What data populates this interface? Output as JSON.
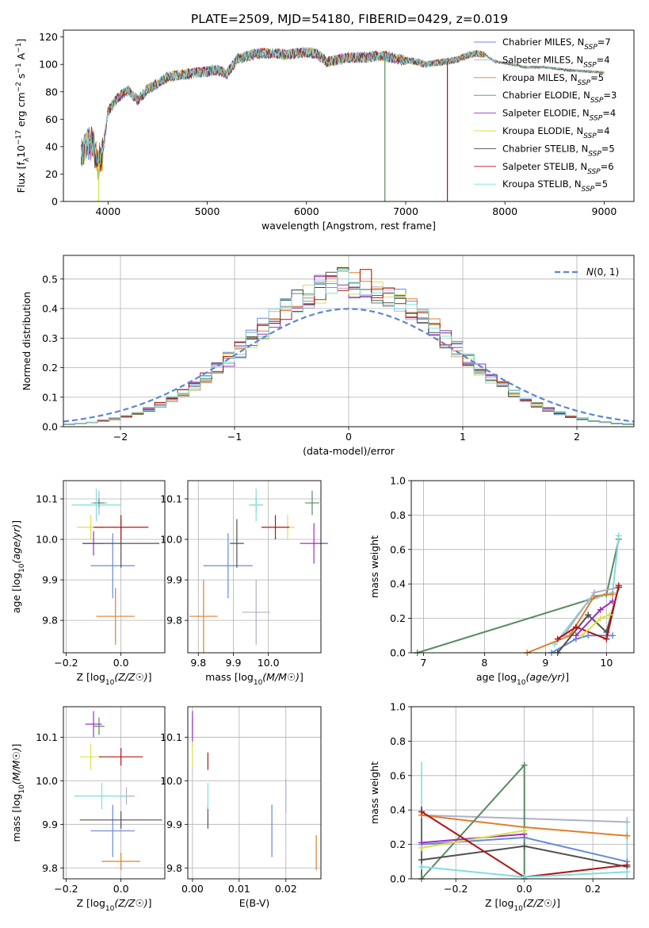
{
  "figure": {
    "title": "PLATE=2509, MJD=54180, FIBERID=0429, z=0.019"
  },
  "model_colors": [
    "#6688dd",
    "#b0b0c8",
    "#e07f2a",
    "#5a8a60",
    "#9b30c0",
    "#d9e048",
    "#505050",
    "#b01515",
    "#80dddd"
  ],
  "chart_data": [
    {
      "id": "spectrum",
      "type": "line",
      "xlabel": "wavelength [Angstrom, rest frame]",
      "ylabel": "Flux [f_λ 10^-17 erg cm^-2 s^-1 A^-1]",
      "xlim": [
        3550,
        9300
      ],
      "ylim": [
        0,
        125
      ],
      "xticks": [
        4000,
        5000,
        6000,
        7000,
        8000,
        9000
      ],
      "yticks": [
        0,
        20,
        40,
        60,
        80,
        100,
        120
      ],
      "grid": false,
      "legend_position": "top-right",
      "legend": [
        {
          "label": "Chabrier MILES, N",
          "sub": "SSP",
          "suffix": "=7"
        },
        {
          "label": "Salpeter MILES, N",
          "sub": "SSP",
          "suffix": "=4"
        },
        {
          "label": "Kroupa MILES, N",
          "sub": "SSP",
          "suffix": "=5"
        },
        {
          "label": "Chabrier ELODIE, N",
          "sub": "SSP",
          "suffix": "=3"
        },
        {
          "label": "Salpeter ELODIE, N",
          "sub": "SSP",
          "suffix": "=4"
        },
        {
          "label": "Kroupa ELODIE, N",
          "sub": "SSP",
          "suffix": "=4"
        },
        {
          "label": "Chabrier STELIB, N",
          "sub": "SSP",
          "suffix": "=5"
        },
        {
          "label": "Salpeter STELIB, N",
          "sub": "SSP",
          "suffix": "=6"
        },
        {
          "label": "Kroupa STELIB, N",
          "sub": "SSP",
          "suffix": "=5"
        }
      ],
      "envelope": {
        "x": [
          3730,
          3800,
          3850,
          3900,
          3950,
          4000,
          4100,
          4200,
          4300,
          4400,
          4500,
          4600,
          4700,
          4800,
          4900,
          5000,
          5100,
          5200,
          5300,
          5400,
          5500,
          5600,
          5700,
          5800,
          5900,
          6000,
          6100,
          6200,
          6300,
          6400,
          6500,
          6600,
          6700,
          6800,
          6900,
          7000,
          7100,
          7200,
          7300,
          7400,
          7500,
          7600,
          7700,
          7800,
          7900,
          8000,
          8200,
          8400,
          8600,
          8800,
          9000
        ],
        "y": [
          33,
          43,
          42,
          27,
          38,
          66,
          76,
          81,
          74,
          82,
          86,
          91,
          92,
          93,
          94,
          95,
          96,
          93,
          104,
          106,
          108,
          108,
          108,
          107,
          108,
          109,
          108,
          102,
          103,
          105,
          105,
          105,
          106,
          106,
          104,
          103,
          102,
          100,
          101,
          102,
          103,
          106,
          108,
          107,
          102,
          101,
          98,
          98,
          96,
          95,
          94
        ]
      },
      "drops": [
        {
          "x": 3905,
          "y": 0,
          "series": 5
        },
        {
          "x": 6790,
          "y": 0,
          "series": 3
        },
        {
          "x": 7420,
          "y": 0,
          "series": 7
        }
      ]
    },
    {
      "id": "residual_histogram",
      "type": "histogram",
      "xlabel": "(data-model)/error",
      "ylabel": "Normed distribution",
      "xlim": [
        -2.5,
        2.5
      ],
      "ylim": [
        0,
        0.58
      ],
      "xticks": [
        -2,
        -1,
        0,
        1,
        2
      ],
      "yticks": [
        0.0,
        0.1,
        0.2,
        0.3,
        0.4,
        0.5
      ],
      "grid": true,
      "legend_position": "top-right",
      "reference_curve": {
        "label": "N(0,1)",
        "mean": 0,
        "sigma": 1,
        "color": "#5a86d6",
        "style": "dashed"
      },
      "bin_width": 0.1
    },
    {
      "id": "age_vs_Z",
      "type": "errorbar",
      "xlabel": "Z [log10(Z/Z☉)]",
      "ylabel": "age  [log10(age/yr)]",
      "xlim": [
        -0.21,
        0.16
      ],
      "ylim": [
        9.72,
        10.145
      ],
      "xticks": [
        -0.2,
        0.0
      ],
      "yticks": [
        9.8,
        9.9,
        10.0,
        10.1
      ],
      "grid": true,
      "points": [
        {
          "series": 0,
          "x": -0.03,
          "y": 9.935,
          "xerr": 0.08,
          "yerr": 0.08
        },
        {
          "series": 1,
          "x": -0.08,
          "y": 10.09,
          "xerr": 0.03,
          "yerr": 0.03
        },
        {
          "series": 2,
          "x": -0.02,
          "y": 9.81,
          "xerr": 0.07,
          "yerr": 0.07
        },
        {
          "series": 3,
          "x": -0.08,
          "y": 10.09,
          "xerr": 0.02,
          "yerr": 0.01
        },
        {
          "series": 4,
          "x": -0.1,
          "y": 9.99,
          "xerr": 0.04,
          "yerr": 0.03
        },
        {
          "series": 5,
          "x": -0.11,
          "y": 10.03,
          "xerr": 0.05,
          "yerr": 0.03
        },
        {
          "series": 6,
          "x": 0.0,
          "y": 9.99,
          "xerr": 0.14,
          "yerr": 0.06
        },
        {
          "series": 7,
          "x": 0.0,
          "y": 10.03,
          "xerr": 0.1,
          "yerr": 0.03
        },
        {
          "series": 8,
          "x": -0.09,
          "y": 10.085,
          "xerr": 0.09,
          "yerr": 0.04
        }
      ]
    },
    {
      "id": "age_vs_mass",
      "type": "errorbar",
      "xlabel": "mass [log10(M/M☉)]",
      "ylabel": "",
      "xlim": [
        9.77,
        10.15
      ],
      "ylim": [
        9.72,
        10.145
      ],
      "xticks": [
        9.8,
        9.9,
        10.0
      ],
      "yticks": [
        9.8,
        9.9,
        10.0,
        10.1
      ],
      "grid": true,
      "points": [
        {
          "series": 0,
          "x": 9.885,
          "y": 9.935,
          "xerr": 0.07,
          "yerr": 0.08
        },
        {
          "series": 1,
          "x": 9.965,
          "y": 10.085,
          "xerr": 0.02,
          "yerr": 0.02
        },
        {
          "series": 2,
          "x": 9.815,
          "y": 9.81,
          "xerr": 0.04,
          "yerr": 0.09
        },
        {
          "series": 3,
          "x": 10.125,
          "y": 10.09,
          "xerr": 0.02,
          "yerr": 0.03
        },
        {
          "series": 4,
          "x": 10.13,
          "y": 9.99,
          "xerr": 0.04,
          "yerr": 0.05
        },
        {
          "series": 5,
          "x": 10.055,
          "y": 10.03,
          "xerr": 0.02,
          "yerr": 0.03
        },
        {
          "series": 6,
          "x": 9.91,
          "y": 9.99,
          "xerr": 0.02,
          "yerr": 0.06
        },
        {
          "series": 7,
          "x": 10.02,
          "y": 10.03,
          "xerr": 0.04,
          "yerr": 0.03
        },
        {
          "series": 8,
          "x": 9.965,
          "y": 10.085,
          "xerr": 0.02,
          "yerr": 0.04
        }
      ],
      "extra_points": [
        {
          "series": 1,
          "x": 9.965,
          "y": 9.82,
          "xerr": 0.04,
          "yerr": 0.08
        }
      ]
    },
    {
      "id": "weight_vs_age",
      "type": "line",
      "xlabel": "age  [log10(age/yr)]",
      "ylabel": "mass weight",
      "xlim": [
        6.8,
        10.45
      ],
      "ylim": [
        0.0,
        1.0
      ],
      "xticks": [
        7,
        8,
        9,
        10
      ],
      "yticks": [
        0.0,
        0.2,
        0.4,
        0.6,
        0.8,
        1.0
      ],
      "grid": true,
      "lines": [
        {
          "series": 3,
          "x": [
            6.9,
            10.0,
            10.2
          ],
          "y": [
            0.0,
            0.34,
            0.66
          ]
        },
        {
          "series": 8,
          "x": [
            9.15,
            9.7,
            10.1,
            10.2
          ],
          "y": [
            0.05,
            0.3,
            0.35,
            0.68
          ]
        },
        {
          "series": 2,
          "x": [
            8.7,
            9.4,
            9.8,
            10.1
          ],
          "y": [
            0.0,
            0.1,
            0.33,
            0.34
          ]
        },
        {
          "series": 0,
          "x": [
            9.1,
            9.5,
            9.7,
            10.1
          ],
          "y": [
            0.0,
            0.08,
            0.1,
            0.1
          ]
        },
        {
          "series": 1,
          "x": [
            9.3,
            9.8,
            10.2
          ],
          "y": [
            0.1,
            0.35,
            0.38
          ]
        },
        {
          "series": 6,
          "x": [
            9.2,
            9.7,
            10.0,
            10.2
          ],
          "y": [
            0.0,
            0.22,
            0.12,
            0.38
          ]
        },
        {
          "series": 7,
          "x": [
            9.2,
            9.5,
            10.0,
            10.2
          ],
          "y": [
            0.08,
            0.15,
            0.08,
            0.39
          ]
        },
        {
          "series": 4,
          "x": [
            9.5,
            9.9,
            10.1
          ],
          "y": [
            0.1,
            0.25,
            0.3
          ]
        },
        {
          "series": 5,
          "x": [
            9.6,
            9.9,
            10.05
          ],
          "y": [
            0.1,
            0.2,
            0.22
          ]
        }
      ]
    },
    {
      "id": "mass_vs_Z",
      "type": "errorbar",
      "xlabel": "Z [log10(Z/Z☉)]",
      "ylabel": "mass [log10(M/M☉)]",
      "xlim": [
        -0.21,
        0.16
      ],
      "ylim": [
        9.775,
        10.17
      ],
      "xticks": [
        -0.2,
        0.0
      ],
      "yticks": [
        9.8,
        9.9,
        10.0,
        10.1
      ],
      "grid": true,
      "points": [
        {
          "series": 0,
          "x": -0.03,
          "y": 9.885,
          "xerr": 0.08,
          "yerr": 0.06
        },
        {
          "series": 1,
          "x": 0.02,
          "y": 9.965,
          "xerr": 0.03,
          "yerr": 0.02
        },
        {
          "series": 2,
          "x": 0.0,
          "y": 9.815,
          "xerr": 0.07,
          "yerr": 0.02
        },
        {
          "series": 3,
          "x": -0.08,
          "y": 10.125,
          "xerr": 0.02,
          "yerr": 0.02
        },
        {
          "series": 4,
          "x": -0.1,
          "y": 10.13,
          "xerr": 0.03,
          "yerr": 0.03
        },
        {
          "series": 5,
          "x": -0.11,
          "y": 10.055,
          "xerr": 0.04,
          "yerr": 0.03
        },
        {
          "series": 6,
          "x": 0.0,
          "y": 9.91,
          "xerr": 0.15,
          "yerr": 0.02
        },
        {
          "series": 7,
          "x": 0.0,
          "y": 10.055,
          "xerr": 0.08,
          "yerr": 0.02
        },
        {
          "series": 8,
          "x": -0.07,
          "y": 9.965,
          "xerr": 0.1,
          "yerr": 0.03
        }
      ]
    },
    {
      "id": "mass_vs_ebv",
      "type": "errorbar",
      "xlabel": "E(B-V)",
      "ylabel": "",
      "xlim": [
        -0.001,
        0.0275
      ],
      "ylim": [
        9.775,
        10.17
      ],
      "xticks": [
        0.0,
        0.01,
        0.02
      ],
      "yticks": [
        9.8,
        9.9,
        10.0,
        10.1
      ],
      "grid": true,
      "points": [
        {
          "series": 0,
          "x": 0.017,
          "y": 9.885,
          "xerr": 0.0,
          "yerr": 0.06
        },
        {
          "series": 1,
          "x": 0.02,
          "y": 9.965,
          "xerr": 0.0,
          "yerr": 0.04
        },
        {
          "series": 2,
          "x": 0.0265,
          "y": 9.835,
          "xerr": 0.0,
          "yerr": 0.04
        },
        {
          "series": 3,
          "x": 0.0,
          "y": 10.125,
          "xerr": 0.0,
          "yerr": 0.02
        },
        {
          "series": 4,
          "x": 0.0,
          "y": 10.12,
          "xerr": 0.0,
          "yerr": 0.04
        },
        {
          "series": 5,
          "x": 0.0,
          "y": 10.06,
          "xerr": 0.0,
          "yerr": 0.03
        },
        {
          "series": 6,
          "x": 0.0033,
          "y": 9.915,
          "xerr": 0.0,
          "yerr": 0.025
        },
        {
          "series": 7,
          "x": 0.0033,
          "y": 10.045,
          "xerr": 0.0,
          "yerr": 0.02
        },
        {
          "series": 8,
          "x": 0.0033,
          "y": 9.965,
          "xerr": 0.0,
          "yerr": 0.03
        }
      ]
    },
    {
      "id": "weight_vs_Z",
      "type": "line",
      "xlabel": "Z [log10(Z/Z☉)]",
      "ylabel": "mass weight",
      "xlim": [
        -0.33,
        0.32
      ],
      "ylim": [
        0.0,
        1.0
      ],
      "xticks": [
        -0.2,
        0.0,
        0.2
      ],
      "yticks": [
        0.0,
        0.2,
        0.4,
        0.6,
        0.8,
        1.0
      ],
      "grid": true,
      "lines": [
        {
          "series": 1,
          "x": [
            -0.3,
            0.0,
            0.3
          ],
          "y": [
            0.37,
            0.35,
            0.33
          ]
        },
        {
          "series": 2,
          "x": [
            -0.3,
            0.0,
            0.3
          ],
          "y": [
            0.37,
            0.3,
            0.25
          ]
        },
        {
          "series": 3,
          "x": [
            -0.3,
            0.0,
            0.0
          ],
          "y": [
            0.0,
            0.66,
            0.0
          ]
        },
        {
          "series": 0,
          "x": [
            -0.3,
            0.0,
            0.3
          ],
          "y": [
            0.2,
            0.24,
            0.1
          ]
        },
        {
          "series": 4,
          "x": [
            -0.3,
            0.0
          ],
          "y": [
            0.21,
            0.26
          ]
        },
        {
          "series": 5,
          "x": [
            -0.3,
            0.0
          ],
          "y": [
            0.18,
            0.28
          ]
        },
        {
          "series": 6,
          "x": [
            -0.3,
            0.0,
            0.3
          ],
          "y": [
            0.11,
            0.19,
            0.07
          ]
        },
        {
          "series": 7,
          "x": [
            -0.3,
            0.0,
            0.3
          ],
          "y": [
            0.39,
            0.01,
            0.08
          ]
        },
        {
          "series": 8,
          "x": [
            -0.3,
            0.0,
            0.3
          ],
          "y": [
            0.07,
            0.01,
            0.04
          ]
        }
      ],
      "vertical_markers": [
        {
          "series": 8,
          "x": -0.3,
          "y0": 0.0,
          "y1": 0.68
        },
        {
          "series": 6,
          "x": -0.3,
          "y0": 0.0,
          "y1": 0.42
        },
        {
          "series": 8,
          "x": 0.3,
          "y0": 0.0,
          "y1": 0.36
        }
      ]
    }
  ]
}
